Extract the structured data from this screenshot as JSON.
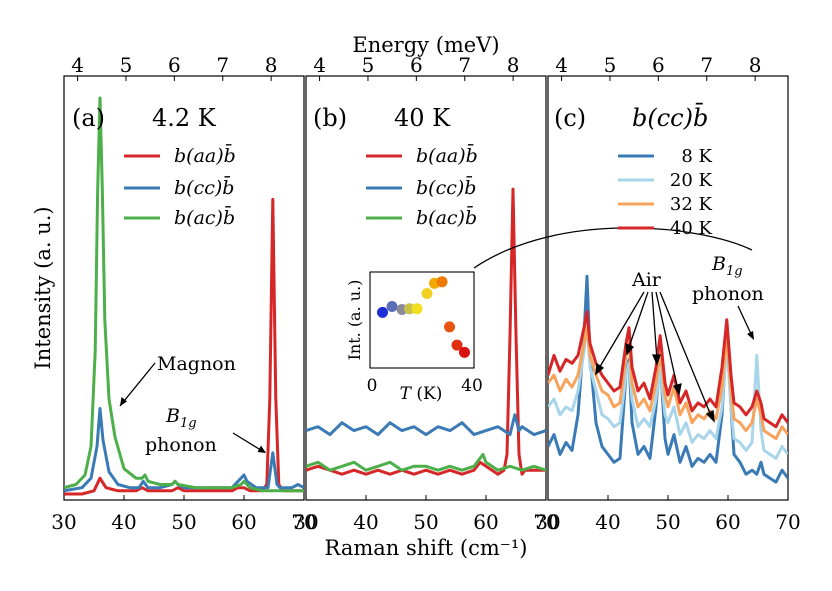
{
  "figure": {
    "top_axis_label": "Energy (meV)",
    "bottom_axis_label": "Raman shift (cm⁻¹)",
    "y_axis_label": "Intensity (a. u.)",
    "top_ticks": [
      "4",
      "5",
      "6",
      "7",
      "8"
    ],
    "top_ticks_c": [
      "4",
      "5",
      "6",
      "7",
      "8"
    ],
    "bottom_ticks_ab": [
      "30",
      "40",
      "50",
      "60",
      "70"
    ],
    "bottom_ticks_c": [
      "30",
      "40",
      "50",
      "60",
      "70"
    ]
  },
  "panels": {
    "a": {
      "tag": "(a)",
      "title": "4.2 K",
      "legend": [
        "b(aa)b̄",
        "b(cc)b̄",
        "b(ac)b̄"
      ],
      "annotations": {
        "magnon": "Magnon",
        "b1g_top": "B",
        "b1g_sub": "1g",
        "phonon": "phonon"
      }
    },
    "b": {
      "tag": "(b)",
      "title": "40 K",
      "legend": [
        "b(aa)b̄",
        "b(cc)b̄",
        "b(ac)b̄"
      ],
      "inset": {
        "ylabel": "Int. (a. u.)",
        "xlabel_T": "T",
        "xlabel_unit": " (K)",
        "xticks": [
          "0",
          "40"
        ]
      }
    },
    "c": {
      "tag": "(c)",
      "title": "b(cc)b̄",
      "legend": [
        "8 K",
        "20 K",
        "32 K",
        "40 K"
      ],
      "annotations": {
        "air": "Air",
        "b1g_top": "B",
        "b1g_sub": "1g",
        "phonon": "phonon"
      }
    }
  },
  "colors": {
    "aa": "#d62728",
    "cc": "#3a7ab5",
    "ac": "#4daf4a",
    "T8": "#3a7ab5",
    "T20": "#a9d5ea",
    "T32": "#f7a35c",
    "T40": "#d62728"
  },
  "chart_data": [
    {
      "type": "line",
      "panel": "a",
      "title": "4.2 K",
      "xlabel": "Raman shift (cm⁻¹)",
      "ylabel": "Intensity (a. u.)",
      "xlim": [
        30,
        70
      ],
      "x2label": "Energy (meV)",
      "grid": false,
      "legend_position": "top-right",
      "series": [
        {
          "name": "b(aa)b̄",
          "color": "#d62728",
          "x": [
            30,
            33,
            35,
            36,
            37,
            39,
            42,
            43,
            44,
            46,
            48,
            49,
            50,
            52,
            54,
            56,
            58,
            59,
            60,
            61,
            62,
            63,
            63.8,
            64.3,
            64.8,
            65.3,
            65.8,
            66.5,
            68,
            70
          ],
          "y": [
            0.0,
            0.0,
            0.01,
            0.05,
            0.02,
            0.01,
            0.01,
            0.02,
            0.01,
            0.01,
            0.01,
            0.02,
            0.01,
            0.01,
            0.01,
            0.01,
            0.01,
            0.02,
            0.02,
            0.01,
            0.01,
            0.01,
            0.03,
            0.3,
            0.93,
            0.3,
            0.03,
            0.01,
            0.01,
            0.01
          ]
        },
        {
          "name": "b(cc)b̄",
          "color": "#3a7ab5",
          "x": [
            30,
            33,
            34.5,
            35.5,
            36,
            36.5,
            37.5,
            39,
            41,
            42.5,
            43.2,
            44,
            46,
            48,
            48.5,
            49,
            50,
            52,
            54,
            56,
            58,
            59.5,
            60,
            60.5,
            62,
            63,
            64,
            64.8,
            65.5,
            66,
            67,
            68,
            69,
            70
          ],
          "y": [
            0.01,
            0.02,
            0.05,
            0.15,
            0.27,
            0.17,
            0.07,
            0.03,
            0.02,
            0.02,
            0.04,
            0.02,
            0.02,
            0.03,
            0.04,
            0.03,
            0.02,
            0.02,
            0.02,
            0.02,
            0.02,
            0.05,
            0.06,
            0.04,
            0.02,
            0.02,
            0.02,
            0.13,
            0.03,
            0.02,
            0.02,
            0.02,
            0.03,
            0.02
          ]
        },
        {
          "name": "b(ac)b̄",
          "color": "#4daf4a",
          "x": [
            30,
            32,
            33.5,
            34.5,
            35.2,
            35.6,
            36,
            36.4,
            36.8,
            37.5,
            38.5,
            40,
            42,
            43,
            43.5,
            44,
            46,
            48,
            48.5,
            49,
            52,
            56,
            58,
            59.5,
            60,
            61,
            63,
            66,
            68,
            70
          ],
          "y": [
            0.02,
            0.03,
            0.06,
            0.15,
            0.45,
            0.95,
            1.25,
            0.95,
            0.55,
            0.3,
            0.18,
            0.08,
            0.05,
            0.05,
            0.06,
            0.04,
            0.03,
            0.03,
            0.04,
            0.03,
            0.02,
            0.02,
            0.02,
            0.03,
            0.04,
            0.02,
            0.01,
            0.01,
            0.01,
            0.01
          ]
        }
      ]
    },
    {
      "type": "line",
      "panel": "b",
      "title": "40 K",
      "xlabel": "Raman shift (cm⁻¹)",
      "xlim": [
        30,
        70
      ],
      "x2label": "Energy (meV)",
      "grid": false,
      "legend_position": "top-right",
      "series": [
        {
          "name": "b(aa)b̄",
          "color": "#d62728",
          "x": [
            30,
            32,
            34,
            36,
            38,
            40,
            42,
            44,
            46,
            48,
            50,
            52,
            54,
            56,
            58,
            59,
            60,
            61,
            62,
            63,
            63.5,
            64,
            64.5,
            65,
            65.5,
            66,
            66.5,
            67,
            68,
            70
          ],
          "y": [
            0.06,
            0.07,
            0.06,
            0.05,
            0.06,
            0.05,
            0.06,
            0.05,
            0.06,
            0.05,
            0.06,
            0.05,
            0.06,
            0.05,
            0.06,
            0.08,
            0.07,
            0.06,
            0.05,
            0.06,
            0.1,
            0.4,
            0.77,
            0.4,
            0.1,
            0.05,
            0.06,
            0.06,
            0.06,
            0.06
          ]
        },
        {
          "name": "b(cc)b̄",
          "color": "#3a7ab5",
          "x": [
            30,
            32,
            34,
            36,
            38,
            40,
            42,
            44,
            46,
            48,
            50,
            52,
            54,
            56,
            58,
            60,
            62,
            64,
            64.8,
            65.5,
            66,
            68,
            70
          ],
          "y": [
            0.16,
            0.17,
            0.15,
            0.18,
            0.16,
            0.17,
            0.15,
            0.18,
            0.16,
            0.17,
            0.15,
            0.17,
            0.16,
            0.18,
            0.15,
            0.16,
            0.17,
            0.15,
            0.2,
            0.16,
            0.17,
            0.15,
            0.16
          ]
        },
        {
          "name": "b(ac)b̄",
          "color": "#4daf4a",
          "x": [
            30,
            32,
            34,
            36,
            38,
            40,
            42,
            44,
            46,
            48,
            50,
            52,
            54,
            56,
            58,
            59.5,
            60,
            61,
            62,
            64,
            66,
            68,
            70
          ],
          "y": [
            0.07,
            0.08,
            0.06,
            0.07,
            0.08,
            0.06,
            0.07,
            0.08,
            0.06,
            0.07,
            0.07,
            0.06,
            0.07,
            0.06,
            0.07,
            0.1,
            0.08,
            0.07,
            0.06,
            0.07,
            0.06,
            0.07,
            0.06
          ]
        }
      ],
      "inset": {
        "type": "scatter",
        "xlabel": "T (K)",
        "ylabel": "Int. (a. u.)",
        "xlim": [
          0,
          40
        ],
        "points": [
          {
            "x": 4.2,
            "y": 0.4,
            "color": "#1f2fd6"
          },
          {
            "x": 8,
            "y": 0.48,
            "color": "#5a6fb8"
          },
          {
            "x": 12,
            "y": 0.44,
            "color": "#8a8a9a"
          },
          {
            "x": 15,
            "y": 0.45,
            "color": "#c9c04a"
          },
          {
            "x": 18,
            "y": 0.45,
            "color": "#f0e020"
          },
          {
            "x": 22,
            "y": 0.66,
            "color": "#f2d020"
          },
          {
            "x": 25,
            "y": 0.8,
            "color": "#f5a800"
          },
          {
            "x": 28,
            "y": 0.82,
            "color": "#f07a00"
          },
          {
            "x": 31,
            "y": 0.2,
            "color": "#e85510"
          },
          {
            "x": 34,
            "y": -0.05,
            "color": "#e03010"
          },
          {
            "x": 37,
            "y": -0.15,
            "color": "#d81010"
          }
        ]
      }
    },
    {
      "type": "line",
      "panel": "c",
      "title": "b(cc)b̄",
      "xlabel": "Raman shift (cm⁻¹)",
      "xlim": [
        30,
        70
      ],
      "x2label": "Energy (meV)",
      "grid": false,
      "legend_position": "top-right",
      "series": [
        {
          "name": "8 K",
          "color": "#3a7ab5",
          "x": [
            30,
            31,
            32,
            33,
            34,
            35,
            36,
            36.5,
            37,
            38,
            39,
            40,
            41,
            42,
            43,
            43.5,
            44,
            45,
            46,
            47,
            48,
            48.7,
            49.5,
            50,
            51,
            52,
            53,
            54,
            55,
            56,
            57,
            58,
            59,
            59.8,
            60.5,
            61,
            62,
            63,
            64,
            64.8,
            65.5,
            66,
            67,
            68,
            69,
            70
          ],
          "y": [
            0.12,
            0.15,
            0.1,
            0.13,
            0.11,
            0.2,
            0.4,
            0.55,
            0.35,
            0.18,
            0.12,
            0.1,
            0.08,
            0.09,
            0.3,
            0.34,
            0.18,
            0.1,
            0.12,
            0.09,
            0.22,
            0.34,
            0.14,
            0.1,
            0.15,
            0.08,
            0.12,
            0.07,
            0.09,
            0.08,
            0.1,
            0.08,
            0.2,
            0.4,
            0.22,
            0.1,
            0.08,
            0.05,
            0.06,
            0.05,
            0.08,
            0.05,
            0.04,
            0.03,
            0.06,
            0.04
          ]
        },
        {
          "name": "20 K",
          "color": "#a9d5ea",
          "x": [
            30,
            31,
            32,
            33,
            34,
            35,
            36,
            36.5,
            37,
            38,
            39,
            40,
            41,
            42,
            43,
            43.5,
            44,
            45,
            46,
            47,
            48,
            48.7,
            49.5,
            50,
            51,
            52,
            53,
            54,
            55,
            56,
            57,
            58,
            59,
            59.8,
            60.5,
            61,
            62,
            63,
            64,
            64.8,
            65.5,
            66,
            67,
            68,
            69,
            70
          ],
          "y": [
            0.22,
            0.24,
            0.2,
            0.22,
            0.21,
            0.26,
            0.36,
            0.43,
            0.32,
            0.26,
            0.2,
            0.19,
            0.17,
            0.18,
            0.3,
            0.33,
            0.24,
            0.17,
            0.19,
            0.17,
            0.24,
            0.32,
            0.2,
            0.18,
            0.22,
            0.15,
            0.18,
            0.13,
            0.15,
            0.14,
            0.16,
            0.14,
            0.22,
            0.38,
            0.22,
            0.14,
            0.13,
            0.11,
            0.13,
            0.35,
            0.16,
            0.11,
            0.1,
            0.09,
            0.12,
            0.1
          ]
        },
        {
          "name": "32 K",
          "color": "#f7a35c",
          "x": [
            30,
            31,
            32,
            33,
            34,
            35,
            36,
            36.5,
            37,
            38,
            39,
            40,
            41,
            42,
            43,
            43.5,
            44,
            45,
            46,
            47,
            48,
            48.7,
            49.5,
            50,
            51,
            52,
            53,
            54,
            55,
            56,
            57,
            58,
            59,
            59.8,
            60.5,
            61,
            62,
            63,
            64,
            64.8,
            65.5,
            66,
            67,
            68,
            69,
            70
          ],
          "y": [
            0.28,
            0.3,
            0.26,
            0.29,
            0.27,
            0.3,
            0.38,
            0.42,
            0.35,
            0.3,
            0.26,
            0.25,
            0.22,
            0.23,
            0.35,
            0.38,
            0.28,
            0.22,
            0.24,
            0.21,
            0.28,
            0.36,
            0.25,
            0.22,
            0.27,
            0.2,
            0.23,
            0.18,
            0.2,
            0.19,
            0.21,
            0.19,
            0.27,
            0.4,
            0.26,
            0.19,
            0.18,
            0.16,
            0.18,
            0.24,
            0.2,
            0.16,
            0.15,
            0.14,
            0.17,
            0.15
          ]
        },
        {
          "name": "40 K",
          "color": "#d62728",
          "x": [
            30,
            31,
            32,
            33,
            34,
            35,
            36,
            36.5,
            37,
            38,
            39,
            40,
            41,
            42,
            43,
            43.5,
            44,
            45,
            46,
            47,
            48,
            48.7,
            49.5,
            50,
            51,
            52,
            53,
            54,
            55,
            56,
            57,
            58,
            59,
            59.8,
            60.5,
            61,
            62,
            63,
            64,
            64.8,
            65.5,
            66,
            67,
            68,
            69,
            70
          ],
          "y": [
            0.3,
            0.35,
            0.31,
            0.34,
            0.33,
            0.35,
            0.42,
            0.46,
            0.38,
            0.33,
            0.3,
            0.28,
            0.26,
            0.27,
            0.38,
            0.42,
            0.32,
            0.26,
            0.28,
            0.24,
            0.32,
            0.4,
            0.28,
            0.25,
            0.3,
            0.23,
            0.26,
            0.21,
            0.23,
            0.22,
            0.24,
            0.22,
            0.32,
            0.44,
            0.3,
            0.23,
            0.22,
            0.2,
            0.22,
            0.26,
            0.23,
            0.19,
            0.18,
            0.17,
            0.2,
            0.18
          ]
        }
      ]
    }
  ]
}
